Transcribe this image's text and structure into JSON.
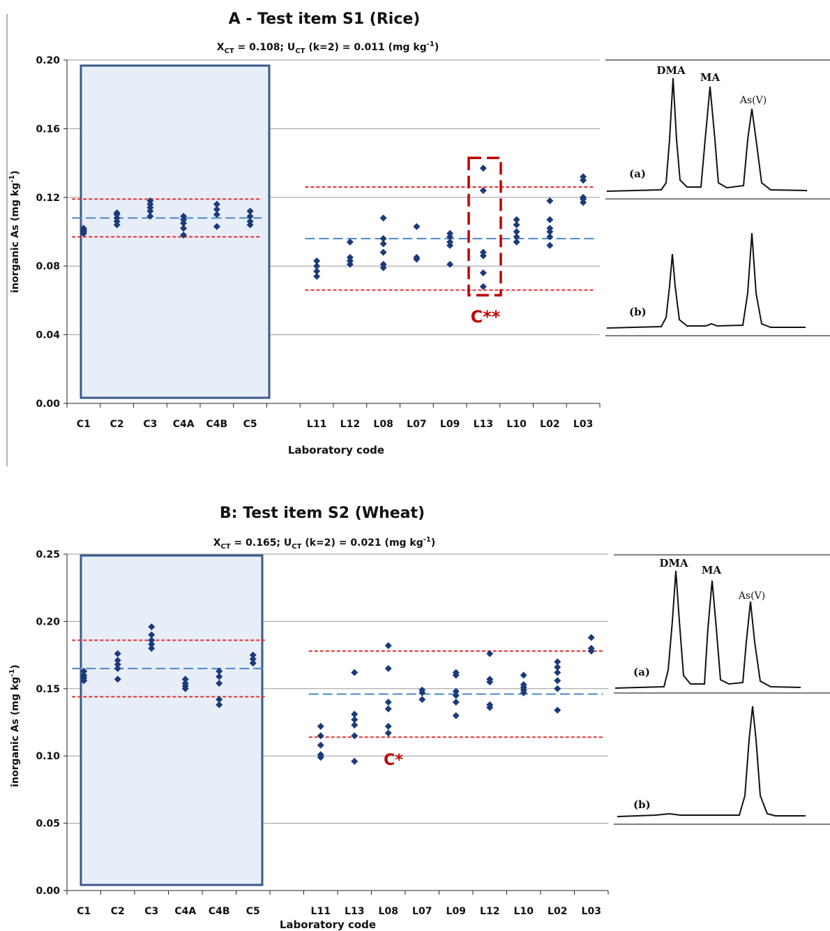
{
  "panels": [
    {
      "id": "A",
      "title": "A - Test item S1 (Rice)",
      "subtitle": {
        "x_sym": "X",
        "x_sub": "CT",
        "x_val": " = 0.108; ",
        "u_sym": "U",
        "u_sub": "CT",
        "u_val": " (k=2) = 0.011 (mg kg",
        "exp": "-1",
        "close": ")"
      },
      "ylabel": "inorganic As (mg kg",
      "ylabel_exp": "-1",
      "ylabel_close": ")",
      "xlabel": "Laboratory code",
      "annotation": "C**",
      "inset": {
        "peaks": [
          "DMA",
          "MA",
          "As(V)"
        ],
        "trace_labels": [
          "(a)",
          "(b)"
        ]
      }
    },
    {
      "id": "B",
      "title": "B: Test item S2 (Wheat)",
      "subtitle": {
        "x_sym": "X",
        "x_sub": "CT",
        "x_val": " = 0.165; ",
        "u_sym": "U",
        "u_sub": "CT",
        "u_val": " (k=2) = 0.021 (mg kg",
        "exp": "-1",
        "close": ")"
      },
      "ylabel": "inorganic As (mg kg",
      "ylabel_exp": "-1",
      "ylabel_close": ")",
      "xlabel": "Laboratory code",
      "annotation": "C*",
      "inset": {
        "peaks": [
          "DMA",
          "MA",
          "As(V)"
        ],
        "trace_labels": [
          "(a)",
          "(b)"
        ]
      }
    }
  ],
  "colors": {
    "marker": "#1a3a7a",
    "box_fill": "#e8eef8",
    "box_stroke": "#3a5a8c",
    "red_line": "#e03030",
    "blue_line": "#4a86c8",
    "annot": "#c00000",
    "grid": "#9a9a9a"
  },
  "chart_data": [
    {
      "type": "scatter",
      "title": "A - Test item S1 (Rice)",
      "xlabel": "Laboratory code",
      "ylabel": "inorganic As (mg kg-1)",
      "ylim": [
        0,
        0.2
      ],
      "yticks": [
        "0.00",
        "0.04",
        "0.08",
        "0.12",
        "0.16",
        "0.20"
      ],
      "categories": [
        "C1",
        "C2",
        "C3",
        "C4A",
        "C4B",
        "C5",
        "",
        "L11",
        "L12",
        "L08",
        "L07",
        "L09",
        "L13",
        "L10",
        "L02",
        "L03"
      ],
      "points": [
        [
          0.099,
          0.1,
          0.101,
          0.102
        ],
        [
          0.104,
          0.106,
          0.108,
          0.11,
          0.111
        ],
        [
          0.109,
          0.112,
          0.114,
          0.116,
          0.118
        ],
        [
          0.098,
          0.102,
          0.105,
          0.107,
          0.109
        ],
        [
          0.103,
          0.11,
          0.113,
          0.116
        ],
        [
          0.104,
          0.106,
          0.109,
          0.112
        ],
        [],
        [
          0.074,
          0.077,
          0.08,
          0.083
        ],
        [
          0.081,
          0.083,
          0.085,
          0.094
        ],
        [
          0.079,
          0.081,
          0.088,
          0.093,
          0.096,
          0.108
        ],
        [
          0.084,
          0.085,
          0.103
        ],
        [
          0.081,
          0.092,
          0.094,
          0.097,
          0.099
        ],
        [
          0.068,
          0.076,
          0.086,
          0.088,
          0.124,
          0.137
        ],
        [
          0.094,
          0.097,
          0.1,
          0.104,
          0.107
        ],
        [
          0.092,
          0.097,
          0.1,
          0.102,
          0.107,
          0.118
        ],
        [
          0.117,
          0.119,
          0.12,
          0.13,
          0.132
        ]
      ],
      "reference_lines": [
        {
          "style": "blue-dashed",
          "from": "C1",
          "to": "C5",
          "value": 0.108
        },
        {
          "style": "red-dotted",
          "from": "C1",
          "to": "C5",
          "value": 0.119
        },
        {
          "style": "red-dotted",
          "from": "C1",
          "to": "C5",
          "value": 0.097
        },
        {
          "style": "blue-dashed",
          "from": "L11",
          "to": "L03",
          "value": 0.096
        },
        {
          "style": "red-dotted",
          "from": "L11",
          "to": "L03",
          "value": 0.126
        },
        {
          "style": "red-dotted",
          "from": "L11",
          "to": "L03",
          "value": 0.066
        }
      ],
      "grid": true
    },
    {
      "type": "scatter",
      "title": "B: Test item S2 (Wheat)",
      "xlabel": "Laboratory code",
      "ylabel": "inorganic As (mg kg-1)",
      "ylim": [
        0,
        0.25
      ],
      "yticks": [
        "0.00",
        "0.05",
        "0.10",
        "0.15",
        "0.20",
        "0.25"
      ],
      "categories": [
        "C1",
        "C2",
        "C3",
        "C4A",
        "C4B",
        "C5",
        "",
        "L11",
        "L13",
        "L08",
        "L07",
        "L09",
        "L12",
        "L10",
        "L02",
        "L03"
      ],
      "points": [
        [
          0.156,
          0.158,
          0.16,
          0.163
        ],
        [
          0.157,
          0.165,
          0.168,
          0.171,
          0.176
        ],
        [
          0.18,
          0.183,
          0.186,
          0.19,
          0.196
        ],
        [
          0.15,
          0.152,
          0.154,
          0.157
        ],
        [
          0.138,
          0.142,
          0.154,
          0.159,
          0.163
        ],
        [
          0.169,
          0.172,
          0.175
        ],
        [],
        [
          0.099,
          0.101,
          0.108,
          0.115,
          0.122
        ],
        [
          0.096,
          0.115,
          0.123,
          0.127,
          0.131,
          0.162
        ],
        [
          0.117,
          0.122,
          0.135,
          0.14,
          0.165,
          0.182
        ],
        [
          0.142,
          0.147,
          0.149
        ],
        [
          0.13,
          0.14,
          0.145,
          0.148,
          0.16,
          0.162
        ],
        [
          0.136,
          0.138,
          0.155,
          0.157,
          0.176
        ],
        [
          0.147,
          0.149,
          0.151,
          0.153,
          0.16
        ],
        [
          0.134,
          0.15,
          0.156,
          0.162,
          0.166,
          0.17
        ],
        [
          0.178,
          0.18,
          0.188
        ]
      ],
      "reference_lines": [
        {
          "style": "blue-dashed",
          "from": "C1",
          "to": "C5",
          "value": 0.165
        },
        {
          "style": "red-dotted",
          "from": "C1",
          "to": "C5",
          "value": 0.186
        },
        {
          "style": "red-dotted",
          "from": "C1",
          "to": "C5",
          "value": 0.144
        },
        {
          "style": "blue-dashed",
          "from": "L11",
          "to": "L03",
          "value": 0.146
        },
        {
          "style": "red-dotted",
          "from": "L11",
          "to": "L03",
          "value": 0.178
        },
        {
          "style": "red-dotted",
          "from": "L11",
          "to": "L03",
          "value": 0.114
        }
      ],
      "grid": true
    }
  ]
}
